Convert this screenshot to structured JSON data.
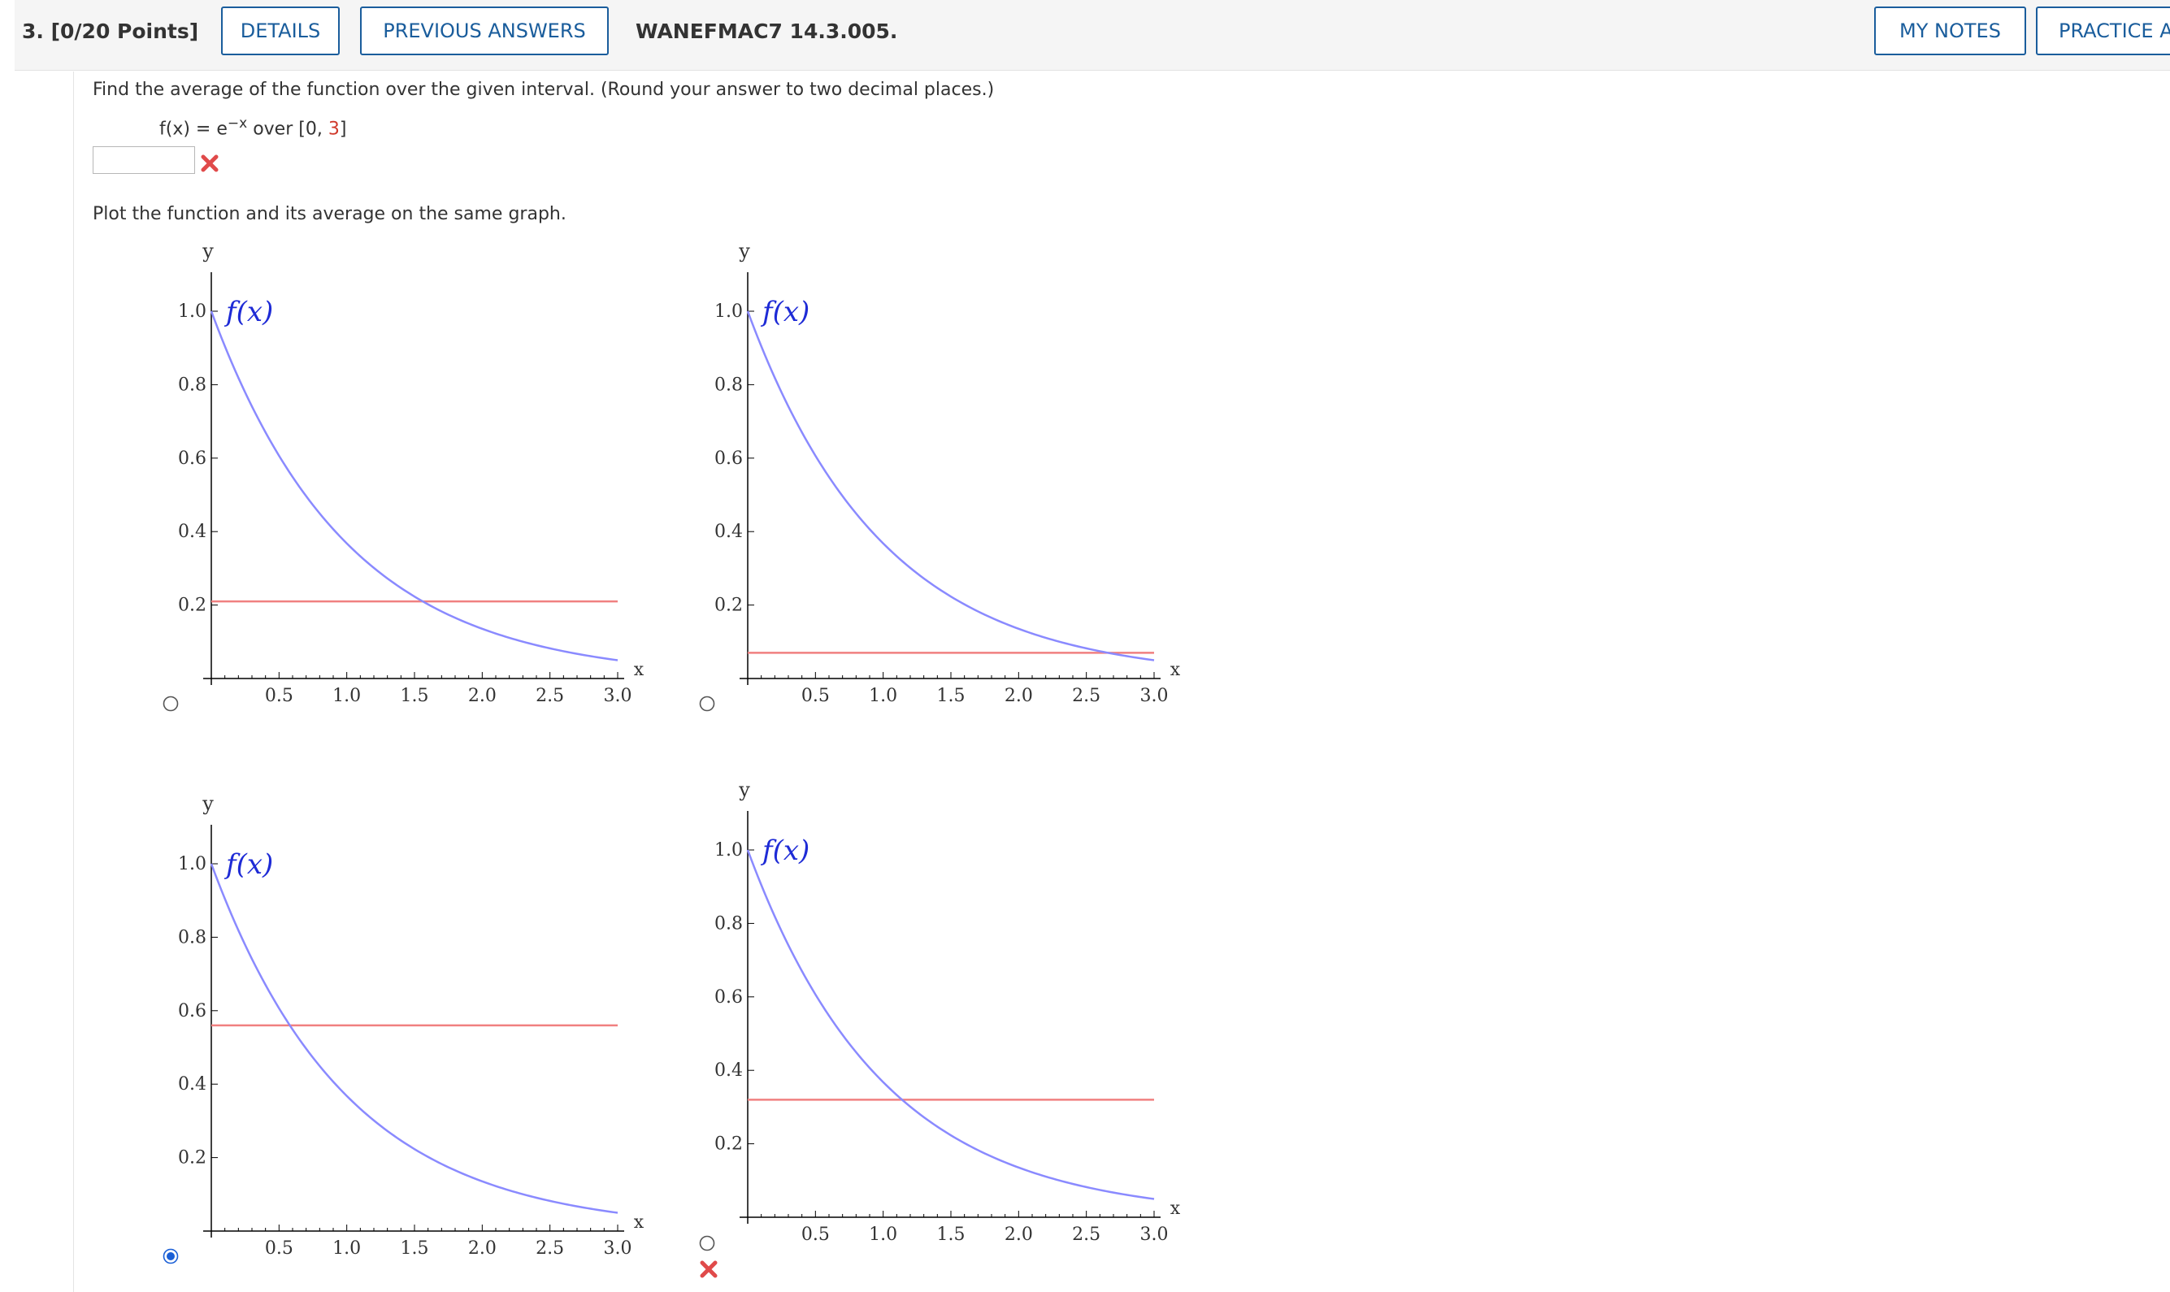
{
  "question": {
    "number_label": "3.  [0/20 Points]",
    "details_label": "DETAILS",
    "previous_answers_label": "PREVIOUS ANSWERS",
    "code": "WANEFMAC7 14.3.005.",
    "my_notes_label": "MY NOTES",
    "practice_label": "PRACTICE A"
  },
  "prompt": {
    "instruction": "Find the average of the function over the given interval. (Round your answer to two decimal places.)",
    "fx_prefix": "f(x) = e",
    "fx_exponent": "−x",
    "fx_over": " over [0, ",
    "fx_upper": "3",
    "fx_close": "]",
    "answer_value": "",
    "answer_status": "incorrect",
    "plot_instruction": "Plot the function and its average on the same graph."
  },
  "colors": {
    "function_curve": "#8a8aff",
    "average_line": "#f08080",
    "function_label": "#1e2bd6",
    "incorrect_mark": "#e04a4a",
    "button_border": "#1a5d9c",
    "radio_selected": "#1a5fd6"
  },
  "chart_data": [
    {
      "type": "line",
      "option": "A",
      "selected": false,
      "function": "e^(-x)",
      "average_line_y": 0.21,
      "x_ticks": [
        "0.5",
        "1.0",
        "1.5",
        "2.0",
        "2.5",
        "3.0"
      ],
      "y_ticks": [
        "0.2",
        "0.4",
        "0.6",
        "0.8",
        "1.0"
      ],
      "xlabel": "x",
      "ylabel": "y",
      "curve_label": "f(x)",
      "xlim": [
        0,
        3
      ],
      "ylim": [
        0,
        1
      ],
      "series": [
        {
          "name": "f(x)",
          "x": [
            0,
            0.25,
            0.5,
            0.75,
            1.0,
            1.25,
            1.5,
            1.75,
            2.0,
            2.25,
            2.5,
            2.75,
            3.0
          ],
          "y": [
            1.0,
            0.779,
            0.607,
            0.472,
            0.368,
            0.287,
            0.223,
            0.174,
            0.135,
            0.105,
            0.082,
            0.064,
            0.05
          ]
        }
      ]
    },
    {
      "type": "line",
      "option": "B",
      "selected": false,
      "function": "e^(-x)",
      "average_line_y": 0.07,
      "x_ticks": [
        "0.5",
        "1.0",
        "1.5",
        "2.0",
        "2.5",
        "3.0"
      ],
      "y_ticks": [
        "0.2",
        "0.4",
        "0.6",
        "0.8",
        "1.0"
      ],
      "xlabel": "x",
      "ylabel": "y",
      "curve_label": "f(x)",
      "xlim": [
        0,
        3
      ],
      "ylim": [
        0,
        1
      ],
      "series": [
        {
          "name": "f(x)",
          "x": [
            0,
            0.25,
            0.5,
            0.75,
            1.0,
            1.25,
            1.5,
            1.75,
            2.0,
            2.25,
            2.5,
            2.75,
            3.0
          ],
          "y": [
            1.0,
            0.779,
            0.607,
            0.472,
            0.368,
            0.287,
            0.223,
            0.174,
            0.135,
            0.105,
            0.082,
            0.064,
            0.05
          ]
        }
      ]
    },
    {
      "type": "line",
      "option": "C",
      "selected": true,
      "function": "e^(-x)",
      "average_line_y": 0.56,
      "x_ticks": [
        "0.5",
        "1.0",
        "1.5",
        "2.0",
        "2.5",
        "3.0"
      ],
      "y_ticks": [
        "0.2",
        "0.4",
        "0.6",
        "0.8",
        "1.0"
      ],
      "xlabel": "x",
      "ylabel": "y",
      "curve_label": "f(x)",
      "xlim": [
        0,
        3
      ],
      "ylim": [
        0,
        1
      ],
      "series": [
        {
          "name": "f(x)",
          "x": [
            0,
            0.25,
            0.5,
            0.75,
            1.0,
            1.25,
            1.5,
            1.75,
            2.0,
            2.25,
            2.5,
            2.75,
            3.0
          ],
          "y": [
            1.0,
            0.779,
            0.607,
            0.472,
            0.368,
            0.287,
            0.223,
            0.174,
            0.135,
            0.105,
            0.082,
            0.064,
            0.05
          ]
        }
      ]
    },
    {
      "type": "line",
      "option": "D",
      "selected": false,
      "function": "e^(-x)",
      "average_line_y": 0.32,
      "x_ticks": [
        "0.5",
        "1.0",
        "1.5",
        "2.0",
        "2.5",
        "3.0"
      ],
      "y_ticks": [
        "0.2",
        "0.4",
        "0.6",
        "0.8",
        "1.0"
      ],
      "xlabel": "x",
      "ylabel": "y",
      "curve_label": "f(x)",
      "xlim": [
        0,
        3
      ],
      "ylim": [
        0,
        1
      ],
      "series": [
        {
          "name": "f(x)",
          "x": [
            0,
            0.25,
            0.5,
            0.75,
            1.0,
            1.25,
            1.5,
            1.75,
            2.0,
            2.25,
            2.5,
            2.75,
            3.0
          ],
          "y": [
            1.0,
            0.779,
            0.607,
            0.472,
            0.368,
            0.287,
            0.223,
            0.174,
            0.135,
            0.105,
            0.082,
            0.064,
            0.05
          ]
        }
      ]
    }
  ],
  "graph_status": "incorrect"
}
